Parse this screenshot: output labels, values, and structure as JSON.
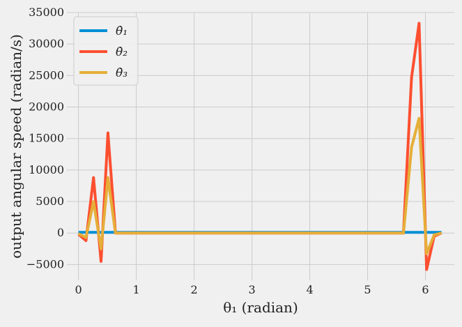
{
  "chart_data": {
    "type": "line",
    "xlabel": "θ₁ (radian)",
    "ylabel": "output angular speed (radian/s)",
    "xlim": [
      -0.2,
      6.5
    ],
    "ylim": [
      -7500,
      35000
    ],
    "x_ticks": [
      0,
      1,
      2,
      3,
      4,
      5,
      6
    ],
    "x_tick_labels": [
      "0",
      "1",
      "2",
      "3",
      "4",
      "5",
      "6"
    ],
    "y_ticks": [
      -5000,
      0,
      5000,
      10000,
      15000,
      20000,
      25000,
      30000,
      35000
    ],
    "y_tick_labels": [
      "−5000",
      "0",
      "5000",
      "10000",
      "15000",
      "20000",
      "25000",
      "30000",
      "35000"
    ],
    "grid": true,
    "legend_position": "top-left",
    "series": [
      {
        "name": "θ̇₁",
        "color": "#008fd5",
        "x": [
          0,
          0.13,
          0.26,
          0.39,
          0.51,
          0.64,
          1.0,
          2.0,
          3.0,
          4.0,
          5.0,
          5.6,
          5.76,
          5.89,
          6.02,
          6.15,
          6.28
        ],
        "y": [
          100,
          100,
          100,
          100,
          100,
          100,
          100,
          100,
          100,
          100,
          100,
          100,
          100,
          100,
          100,
          100,
          100
        ]
      },
      {
        "name": "θ̇₂",
        "color": "#fc4f30",
        "x": [
          0,
          0.13,
          0.26,
          0.39,
          0.51,
          0.64,
          1.0,
          2.0,
          3.0,
          4.0,
          5.0,
          5.62,
          5.76,
          5.89,
          6.02,
          6.15,
          6.28
        ],
        "y": [
          -200,
          -1200,
          8800,
          -4500,
          15900,
          0,
          0,
          0,
          0,
          0,
          0,
          0,
          24700,
          33300,
          -5800,
          -500,
          0
        ]
      },
      {
        "name": "θ̇₃",
        "color": "#e5ae38",
        "x": [
          0,
          0.13,
          0.26,
          0.39,
          0.51,
          0.64,
          1.0,
          2.0,
          3.0,
          4.0,
          5.0,
          5.62,
          5.76,
          5.89,
          6.02,
          6.15,
          6.28
        ],
        "y": [
          -100,
          -700,
          5000,
          -2500,
          8800,
          0,
          0,
          0,
          0,
          0,
          0,
          0,
          13600,
          18200,
          -3300,
          -300,
          0
        ]
      }
    ]
  }
}
